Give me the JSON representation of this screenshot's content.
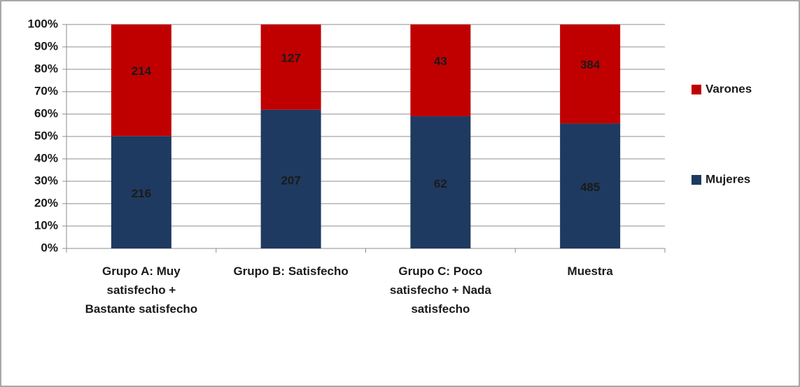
{
  "chart_data": {
    "type": "bar",
    "stacking": "percent",
    "categories": [
      "Grupo A: Muy satisfecho + Bastante satisfecho",
      "Grupo B: Satisfecho",
      "Grupo C: Poco satisfecho + Nada satisfecho",
      "Muestra"
    ],
    "series": [
      {
        "name": "Mujeres",
        "color": "#1f3a60",
        "values": [
          216,
          207,
          62,
          485
        ]
      },
      {
        "name": "Varones",
        "color": "#c00000",
        "values": [
          214,
          127,
          43,
          384
        ]
      }
    ],
    "ylim": [
      0,
      100
    ],
    "yticks": [
      {
        "value": 0,
        "label": "0%"
      },
      {
        "value": 10,
        "label": "10%"
      },
      {
        "value": 20,
        "label": "20%"
      },
      {
        "value": 30,
        "label": "30%"
      },
      {
        "value": 40,
        "label": "40%"
      },
      {
        "value": 50,
        "label": "50%"
      },
      {
        "value": 60,
        "label": "60%"
      },
      {
        "value": 70,
        "label": "70%"
      },
      {
        "value": 80,
        "label": "80%"
      },
      {
        "value": 90,
        "label": "90%"
      },
      {
        "value": 100,
        "label": "100%"
      }
    ],
    "grid": true,
    "legend": "right"
  }
}
